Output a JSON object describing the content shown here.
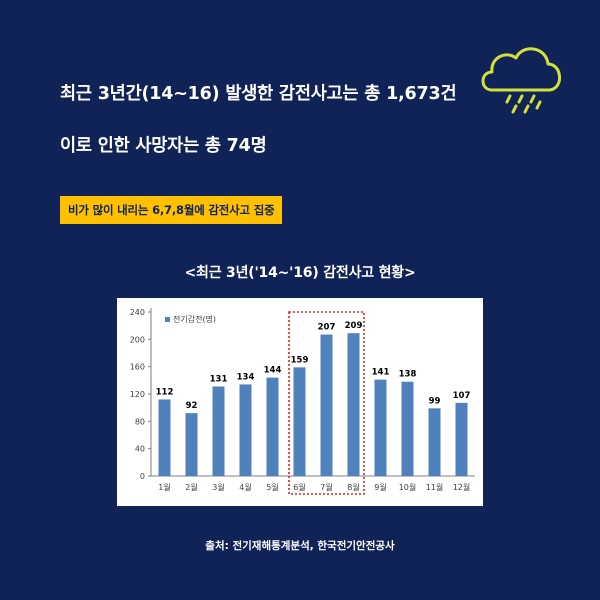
{
  "header": {
    "line1": "최근 3년간(14~16) 발생한 감전사고는 총 1,673건",
    "line2": "이로 인한 사망자는 총 74명",
    "highlight": "비가 많이 내리는 6,7,8월에 감전사고 집중"
  },
  "chart_title": "<최근 3년('14~'16) 감전사고 현황>",
  "source": "출처: 전기재해통계분석, 한국전기안전공사",
  "icon": "rain-cloud-icon",
  "colors": {
    "background": "#0f2356",
    "accent": "#ffc000",
    "bar": "#4f81bd",
    "highlight_box": "#e02020"
  },
  "chart_data": {
    "type": "bar",
    "categories": [
      "1월",
      "2월",
      "3월",
      "4월",
      "5월",
      "6월",
      "7월",
      "8월",
      "9월",
      "10월",
      "11월",
      "12월"
    ],
    "series": [
      {
        "name": "전기감전(명)",
        "values": [
          112,
          92,
          131,
          134,
          144,
          159,
          207,
          209,
          141,
          138,
          99,
          107
        ]
      }
    ],
    "ylim": [
      0,
      240
    ],
    "yticks": [
      0,
      40,
      80,
      120,
      160,
      200,
      240
    ],
    "grid": false,
    "legend": "top-left",
    "highlighted_categories": [
      "6월",
      "7월",
      "8월"
    ]
  }
}
